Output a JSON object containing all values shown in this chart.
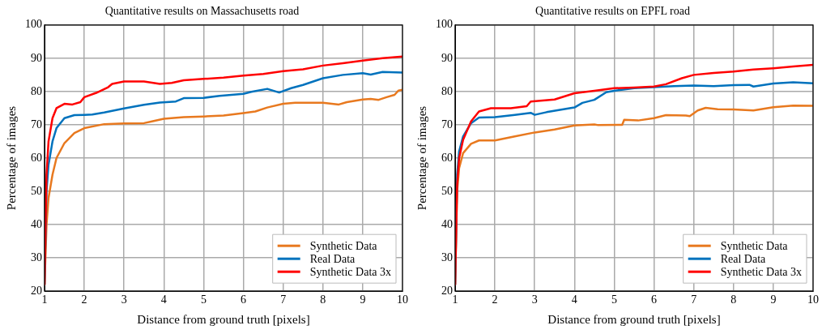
{
  "chart_data": [
    {
      "type": "line",
      "title": "Quantitative results on Massachusetts road",
      "xlabel": "Distance from ground truth [pixels]",
      "ylabel": "Percentage of images",
      "xlim": [
        1,
        10
      ],
      "ylim": [
        20,
        100
      ],
      "xticks": [
        1,
        2,
        3,
        4,
        5,
        6,
        7,
        8,
        9,
        10
      ],
      "yticks": [
        20,
        30,
        40,
        50,
        60,
        70,
        80,
        90,
        100
      ],
      "grid": true,
      "legend": "bottom right",
      "series": [
        {
          "name": "Synthetic Data",
          "color": "#e8791f",
          "x": [
            1,
            1.05,
            1.1,
            1.2,
            1.3,
            1.5,
            1.75,
            2,
            2.5,
            3,
            3.5,
            3.7,
            4,
            4.5,
            5,
            5.5,
            6,
            6.3,
            6.6,
            7,
            7.3,
            8,
            8.4,
            8.6,
            9,
            9.2,
            9.4,
            9.6,
            9.8,
            9.9,
            10
          ],
          "values": [
            22,
            40,
            48,
            55,
            60,
            64.5,
            67.5,
            69,
            70.2,
            70.4,
            70.5,
            71,
            71.8,
            72.3,
            72.5,
            72.8,
            73.5,
            74,
            75.2,
            76.3,
            76.6,
            76.6,
            76.1,
            76.8,
            77.6,
            77.8,
            77.5,
            78.3,
            79,
            80.3,
            80.5
          ]
        },
        {
          "name": "Real Data",
          "color": "#0072bd",
          "x": [
            1,
            1.05,
            1.1,
            1.2,
            1.3,
            1.5,
            1.75,
            2,
            2.2,
            2.5,
            3,
            3.5,
            3.9,
            4.3,
            4.5,
            5,
            5.4,
            6,
            6.2,
            6.6,
            6.9,
            7.2,
            7.5,
            8,
            8.5,
            9,
            9.2,
            9.5,
            10
          ],
          "values": [
            22,
            50,
            58,
            65,
            69,
            72,
            72.9,
            73,
            73.1,
            73.7,
            74.9,
            76,
            76.7,
            77,
            78,
            78.1,
            78.7,
            79.3,
            79.9,
            80.8,
            79.7,
            81,
            82,
            84,
            85,
            85.5,
            85.1,
            85.9,
            85.7
          ]
        },
        {
          "name": "Synthetic Data 3x",
          "color": "#ff0000",
          "x": [
            1,
            1.05,
            1.1,
            1.2,
            1.3,
            1.5,
            1.7,
            1.9,
            2,
            2.3,
            2.6,
            2.7,
            3,
            3.5,
            3.9,
            4.2,
            4.5,
            5,
            5.5,
            6,
            6.5,
            7,
            7.5,
            8,
            8.5,
            9,
            9.5,
            10
          ],
          "values": [
            22,
            55,
            65,
            72,
            75,
            76.3,
            76.1,
            76.8,
            78.3,
            79.6,
            81.3,
            82.3,
            83,
            83,
            82.3,
            82.6,
            83.4,
            83.8,
            84.2,
            84.8,
            85.3,
            86.1,
            86.7,
            87.8,
            88.5,
            89.3,
            90,
            90.5
          ]
        }
      ]
    },
    {
      "type": "line",
      "title": "Quantitative results on EPFL road",
      "xlabel": "Distance from ground truth [pixels]",
      "ylabel": "Percentage of images",
      "xlim": [
        1,
        10
      ],
      "ylim": [
        20,
        100
      ],
      "xticks": [
        1,
        2,
        3,
        4,
        5,
        6,
        7,
        8,
        9,
        10
      ],
      "yticks": [
        20,
        30,
        40,
        50,
        60,
        70,
        80,
        90,
        100
      ],
      "grid": true,
      "legend": "bottom right",
      "series": [
        {
          "name": "Synthetic Data",
          "color": "#e8791f",
          "x": [
            1,
            1.05,
            1.1,
            1.2,
            1.4,
            1.6,
            2,
            2.5,
            3,
            3.5,
            4,
            4.5,
            4.6,
            5.2,
            5.25,
            5.6,
            6,
            6.3,
            6.8,
            6.9,
            7.1,
            7.3,
            7.6,
            8,
            8.5,
            9,
            9.5,
            10
          ],
          "values": [
            22,
            50,
            57,
            61.5,
            64.3,
            65.3,
            65.3,
            66.5,
            67.7,
            68.6,
            69.8,
            70.1,
            69.9,
            70,
            71.5,
            71.3,
            72,
            72.9,
            72.8,
            72.6,
            74.3,
            75.1,
            74.7,
            74.6,
            74.3,
            75.3,
            75.8,
            75.7
          ]
        },
        {
          "name": "Real Data",
          "color": "#0072bd",
          "x": [
            1,
            1.05,
            1.1,
            1.2,
            1.4,
            1.6,
            2,
            2.5,
            2.9,
            3,
            3.3,
            4,
            4.2,
            4.5,
            4.8,
            5,
            5.5,
            6,
            6.5,
            7,
            7.5,
            8,
            8.4,
            8.5,
            9,
            9.5,
            10
          ],
          "values": [
            22,
            55,
            62,
            66.5,
            70.5,
            72.2,
            72.3,
            73,
            73.6,
            73,
            73.8,
            75.2,
            76.6,
            77.5,
            79.8,
            80.2,
            81,
            81.3,
            81.6,
            81.8,
            81.6,
            81.9,
            82,
            81.5,
            82.4,
            82.8,
            82.5
          ]
        },
        {
          "name": "Synthetic Data 3x",
          "color": "#ff0000",
          "x": [
            1,
            1.05,
            1.1,
            1.2,
            1.4,
            1.6,
            1.9,
            2.4,
            2.8,
            2.9,
            3.5,
            4,
            4.5,
            5,
            5.5,
            6,
            6.3,
            6.7,
            7,
            7.5,
            8,
            8.5,
            9,
            9.5,
            10
          ],
          "values": [
            22,
            52,
            60,
            65.5,
            71,
            74,
            75,
            75,
            75.6,
            77,
            77.6,
            79.5,
            80.2,
            81,
            81.2,
            81.5,
            82.2,
            84,
            85,
            85.6,
            86,
            86.6,
            87,
            87.5,
            88
          ]
        }
      ]
    }
  ]
}
